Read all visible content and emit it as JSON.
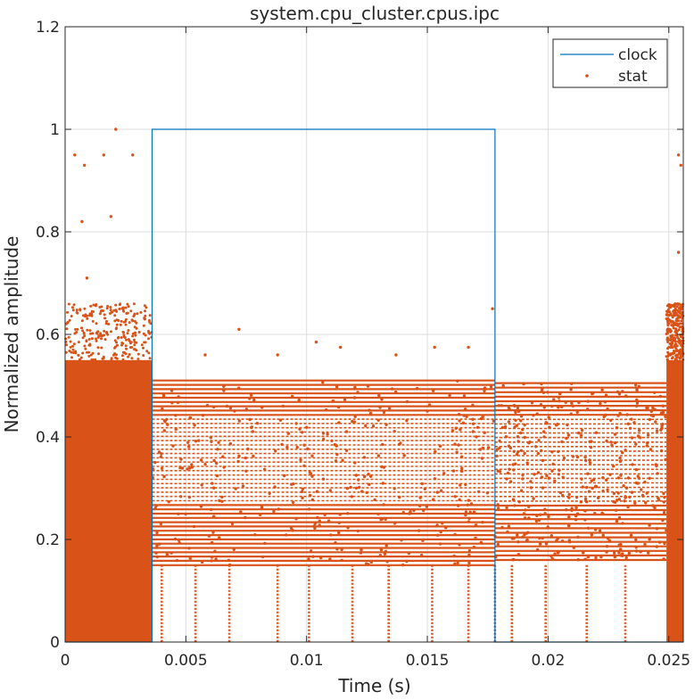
{
  "colors": {
    "clock": "#0072BD",
    "stat": "#D95319",
    "grid": "#dcdcdc",
    "axis": "#262626"
  },
  "chart_data": {
    "type": "scatter",
    "title": "system.cpu_cluster.cpus.ipc",
    "xlabel": "Time (s)",
    "ylabel": "Normalized amplitude",
    "xlim": [
      0,
      0.0256
    ],
    "ylim": [
      0,
      1.2
    ],
    "x_ticks": [
      0,
      0.005,
      0.01,
      0.015,
      0.02,
      0.025
    ],
    "x_tick_labels": [
      "0",
      "0.005",
      "0.01",
      "0.015",
      "0.02",
      "0.025"
    ],
    "y_ticks": [
      0,
      0.2,
      0.4,
      0.6,
      0.8,
      1.0,
      1.2
    ],
    "y_tick_labels": [
      "0",
      "0.2",
      "0.4",
      "0.6",
      "0.8",
      "1",
      "1.2"
    ],
    "grid": true,
    "legend_position": "top-right",
    "series": [
      {
        "name": "clock",
        "style": "line",
        "x": [
          0,
          0.0036,
          0.0036,
          0.0178,
          0.0178,
          0.0256
        ],
        "y": [
          0,
          0,
          1.0,
          1.0,
          0,
          0
        ]
      },
      {
        "name": "stat",
        "style": "markers",
        "segments": [
          {
            "x_range": [
              0,
              0.0036
            ],
            "y_min": 0,
            "y_max": 0.6,
            "dense_max": 0.55
          },
          {
            "x_range": [
              0.0036,
              0.0178
            ],
            "y_min": 0.15,
            "y_max": 0.51
          },
          {
            "x_range": [
              0.0178,
              0.0249
            ],
            "y_min": 0.16,
            "y_max": 0.505
          },
          {
            "x_range": [
              0.0249,
              0.0256
            ],
            "y_min": 0,
            "y_max": 0.6,
            "dense_max": 0.55
          }
        ],
        "outliers": [
          {
            "x": 0.0021,
            "y": 1.0
          },
          {
            "x": 0.0004,
            "y": 0.95
          },
          {
            "x": 0.0008,
            "y": 0.93
          },
          {
            "x": 0.0016,
            "y": 0.95
          },
          {
            "x": 0.0028,
            "y": 0.95
          },
          {
            "x": 0.0007,
            "y": 0.82
          },
          {
            "x": 0.0019,
            "y": 0.83
          },
          {
            "x": 0.0009,
            "y": 0.71
          },
          {
            "x": 0.0033,
            "y": 0.63
          },
          {
            "x": 0.0072,
            "y": 0.61
          },
          {
            "x": 0.0058,
            "y": 0.56
          },
          {
            "x": 0.0088,
            "y": 0.56
          },
          {
            "x": 0.0104,
            "y": 0.585
          },
          {
            "x": 0.0114,
            "y": 0.575
          },
          {
            "x": 0.0137,
            "y": 0.56
          },
          {
            "x": 0.0153,
            "y": 0.575
          },
          {
            "x": 0.0167,
            "y": 0.575
          },
          {
            "x": 0.0177,
            "y": 0.65
          },
          {
            "x": 0.0254,
            "y": 0.95
          },
          {
            "x": 0.0255,
            "y": 0.93
          },
          {
            "x": 0.0254,
            "y": 0.76
          }
        ],
        "spikes_x": [
          0.004,
          0.0054,
          0.0068,
          0.0088,
          0.0101,
          0.0119,
          0.0134,
          0.0152,
          0.0167,
          0.0178,
          0.0185,
          0.0199,
          0.0216,
          0.0232
        ]
      }
    ]
  }
}
